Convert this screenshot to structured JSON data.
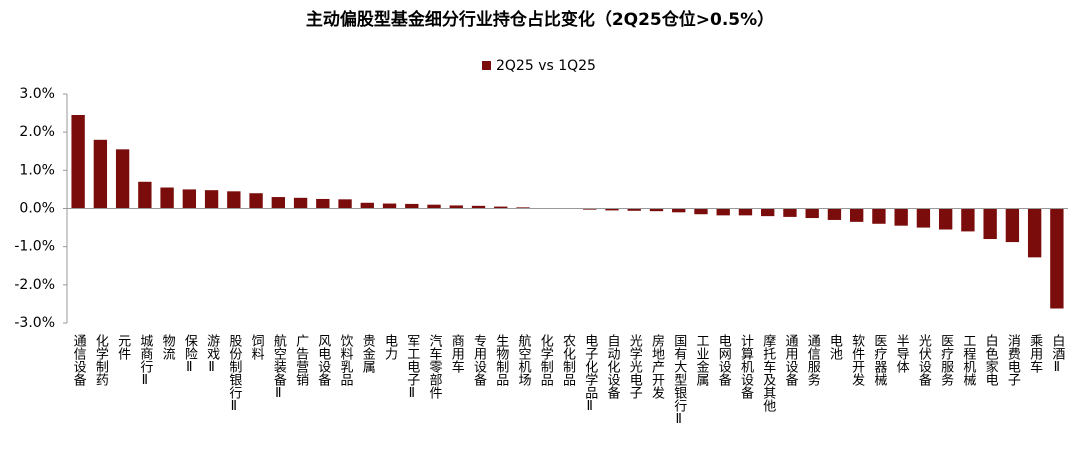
{
  "chart_data": {
    "type": "bar",
    "title": "主动偏股型基金细分行业持仓占比变化（2Q25仓位>0.5%）",
    "categories": [
      "通信设备",
      "化学制药",
      "元件",
      "城商行Ⅱ",
      "物流",
      "保险Ⅱ",
      "游戏Ⅱ",
      "股份制银行Ⅱ",
      "饲料",
      "航空装备Ⅱ",
      "广告营销",
      "风电设备",
      "饮料乳品",
      "贵金属",
      "电力",
      "军工电子Ⅱ",
      "汽车零部件",
      "商用车",
      "专用设备",
      "生物制品",
      "航空机场",
      "化学制品",
      "农化制品",
      "电子化学品Ⅱ",
      "自动化设备",
      "光学光电子",
      "房地产开发",
      "国有大型银行Ⅱ",
      "工业金属",
      "电网设备",
      "计算机设备",
      "摩托车及其他",
      "通用设备",
      "通信服务",
      "电池",
      "软件开发",
      "医疗器械",
      "半导体",
      "光伏设备",
      "医疗服务",
      "工程机械",
      "白色家电",
      "消费电子",
      "乘用车",
      "白酒Ⅱ"
    ],
    "series": [
      {
        "name": "2Q25 vs 1Q25",
        "color": "#7b0c0c",
        "values": [
          2.45,
          1.8,
          1.55,
          0.7,
          0.55,
          0.5,
          0.48,
          0.45,
          0.4,
          0.3,
          0.28,
          0.25,
          0.24,
          0.15,
          0.13,
          0.12,
          0.1,
          0.08,
          0.07,
          0.05,
          0.03,
          0.01,
          0.0,
          -0.03,
          -0.05,
          -0.06,
          -0.07,
          -0.1,
          -0.15,
          -0.18,
          -0.18,
          -0.2,
          -0.22,
          -0.25,
          -0.3,
          -0.35,
          -0.4,
          -0.45,
          -0.5,
          -0.55,
          -0.6,
          -0.8,
          -0.88,
          -1.28,
          -2.62
        ]
      }
    ],
    "ylim": [
      -3,
      3
    ],
    "yticks": [
      {
        "value": -3,
        "label": "-3.0%"
      },
      {
        "value": -2,
        "label": "-2.0%"
      },
      {
        "value": -1,
        "label": "-1.0%"
      },
      {
        "value": 0,
        "label": "0.0%"
      },
      {
        "value": 1,
        "label": "1.0%"
      },
      {
        "value": 2,
        "label": "2.0%"
      },
      {
        "value": 3,
        "label": "3.0%"
      }
    ],
    "legend": "top"
  }
}
